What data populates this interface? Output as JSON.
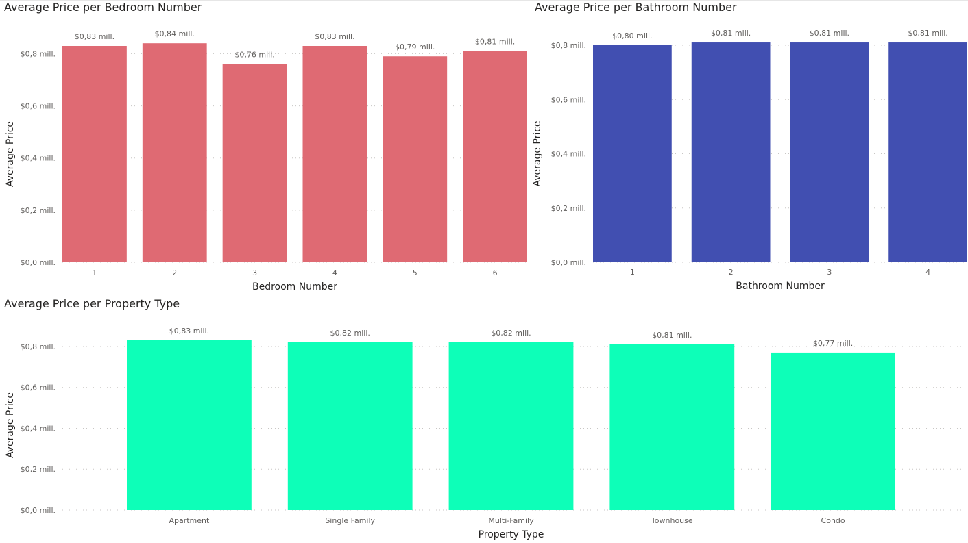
{
  "chart_data": [
    {
      "type": "bar",
      "title": "Average Price per Bedroom Number",
      "xlabel": "Bedroom Number",
      "ylabel": "Average Price",
      "categories": [
        "1",
        "2",
        "3",
        "4",
        "5",
        "6"
      ],
      "values": [
        0.83,
        0.84,
        0.76,
        0.83,
        0.79,
        0.81
      ],
      "data_labels": [
        "$0,83 mill.",
        "$0,84 mill.",
        "$0,76 mill.",
        "$0,83 mill.",
        "$0,79 mill.",
        "$0,81 mill."
      ],
      "yticks": [
        0,
        0.2,
        0.4,
        0.6,
        0.8
      ],
      "ytick_labels": [
        "$0,0 mill.",
        "$0,2 mill.",
        "$0,4 mill.",
        "$0,6 mill.",
        "$0,8 mill."
      ],
      "ylim": [
        0,
        0.84
      ],
      "grid": true,
      "color": "#DF6A73"
    },
    {
      "type": "bar",
      "title": "Average Price per Bathroom Number",
      "xlabel": "Bathroom Number",
      "ylabel": "Average Price",
      "categories": [
        "1",
        "2",
        "3",
        "4"
      ],
      "values": [
        0.8,
        0.81,
        0.81,
        0.81
      ],
      "data_labels": [
        "$0,80 mill.",
        "$0,81 mill.",
        "$0,81 mill.",
        "$0,81 mill."
      ],
      "yticks": [
        0,
        0.2,
        0.4,
        0.6,
        0.8
      ],
      "ytick_labels": [
        "$0,0 mill.",
        "$0,2 mill.",
        "$0,4 mill.",
        "$0,6 mill.",
        "$0,8 mill."
      ],
      "ylim": [
        0,
        0.81
      ],
      "grid": true,
      "color": "#414FB1"
    },
    {
      "type": "bar",
      "title": "Average Price per Property Type",
      "xlabel": "Property Type",
      "ylabel": "Average Price",
      "categories": [
        "Apartment",
        "Single Family",
        "Multi-Family",
        "Townhouse",
        "Condo"
      ],
      "values": [
        0.83,
        0.82,
        0.82,
        0.81,
        0.77
      ],
      "data_labels": [
        "$0,83 mill.",
        "$0,82 mill.",
        "$0,82 mill.",
        "$0,81 mill.",
        "$0,77 mill."
      ],
      "yticks": [
        0,
        0.2,
        0.4,
        0.6,
        0.8
      ],
      "ytick_labels": [
        "$0,0 mill.",
        "$0,2 mill.",
        "$0,4 mill.",
        "$0,6 mill.",
        "$0,8 mill."
      ],
      "ylim": [
        0,
        0.83
      ],
      "grid": true,
      "color": "#0DFFB8"
    }
  ]
}
